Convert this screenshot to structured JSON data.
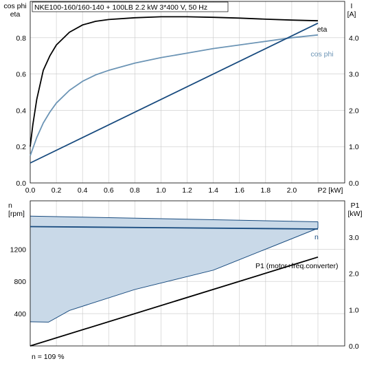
{
  "chart_data": [
    {
      "type": "line",
      "title": "NKE100-160/160-140 + 100LB   2.2 kW   3*400 V, 50 Hz",
      "left_axis_label_lines": [
        "cos phi",
        "eta"
      ],
      "right_axis_label_lines": [
        "I",
        "[A]"
      ],
      "xlabel": "P2 [kW]",
      "xlim": [
        0,
        2.2
      ],
      "ylim_left": [
        0,
        1.0
      ],
      "ylim_right": [
        0,
        5.0
      ],
      "x_ticks": [
        "0.0",
        "0.2",
        "0.4",
        "0.6",
        "0.8",
        "1.0",
        "1.2",
        "1.4",
        "1.6",
        "1.8",
        "2.0"
      ],
      "y_ticks_left": [
        "0.0",
        "0.2",
        "0.4",
        "0.6",
        "0.8"
      ],
      "y_ticks_right": [
        "0.0",
        "1.0",
        "2.0",
        "3.0",
        "4.0"
      ],
      "grid": true,
      "series": [
        {
          "name": "eta",
          "axis": "left",
          "color": "#000000",
          "points": [
            [
              0,
              0.2
            ],
            [
              0.02,
              0.32
            ],
            [
              0.05,
              0.46
            ],
            [
              0.1,
              0.62
            ],
            [
              0.15,
              0.7
            ],
            [
              0.2,
              0.76
            ],
            [
              0.3,
              0.83
            ],
            [
              0.4,
              0.87
            ],
            [
              0.5,
              0.89
            ],
            [
              0.6,
              0.9
            ],
            [
              0.8,
              0.91
            ],
            [
              1.0,
              0.915
            ],
            [
              1.2,
              0.915
            ],
            [
              1.4,
              0.912
            ],
            [
              1.6,
              0.908
            ],
            [
              1.8,
              0.902
            ],
            [
              2.0,
              0.897
            ],
            [
              2.2,
              0.893
            ]
          ]
        },
        {
          "name": "cos phi",
          "axis": "left",
          "color": "#6b94b5",
          "points": [
            [
              0,
              0.15
            ],
            [
              0.05,
              0.25
            ],
            [
              0.1,
              0.33
            ],
            [
              0.15,
              0.39
            ],
            [
              0.2,
              0.44
            ],
            [
              0.3,
              0.51
            ],
            [
              0.4,
              0.56
            ],
            [
              0.5,
              0.595
            ],
            [
              0.6,
              0.62
            ],
            [
              0.8,
              0.66
            ],
            [
              1.0,
              0.69
            ],
            [
              1.2,
              0.715
            ],
            [
              1.4,
              0.74
            ],
            [
              1.6,
              0.76
            ],
            [
              1.8,
              0.78
            ],
            [
              2.0,
              0.8
            ],
            [
              2.2,
              0.815
            ]
          ]
        },
        {
          "name": "",
          "axis": "right",
          "color": "#174a7e",
          "points": [
            [
              0,
              0.55
            ],
            [
              2.2,
              4.4
            ]
          ]
        }
      ]
    },
    {
      "type": "area",
      "left_axis_label_lines": [
        "n",
        "[rpm]"
      ],
      "right_axis_label_lines": [
        "P1",
        "[kW]"
      ],
      "xlim": [
        0,
        2.2
      ],
      "ylim_left": [
        0,
        1800
      ],
      "ylim_right": [
        0,
        4.0
      ],
      "y_ticks_left": [
        "400",
        "800",
        "1200"
      ],
      "y_ticks_right": [
        "0.0",
        "1.0",
        "2.0",
        "3.0"
      ],
      "grid": true,
      "footnote": "n = 109 %",
      "band": {
        "color": "#c9d9e8",
        "edge_color": "#174a7e",
        "upper": [
          [
            0,
            1610
          ],
          [
            2.2,
            1540
          ]
        ],
        "lower": [
          [
            0,
            300
          ],
          [
            0.14,
            295
          ],
          [
            0.3,
            440
          ],
          [
            0.8,
            700
          ],
          [
            1.4,
            940
          ],
          [
            2.2,
            1460
          ]
        ]
      },
      "series": [
        {
          "name": "n",
          "axis": "left",
          "color": "#174a7e",
          "points": [
            [
              0,
              1480
            ],
            [
              2.2,
              1450
            ]
          ]
        },
        {
          "name": "P1 (motor+freq.converter)",
          "axis": "right",
          "color": "#000000",
          "points": [
            [
              0,
              0.0
            ],
            [
              2.2,
              2.45
            ]
          ]
        }
      ]
    }
  ]
}
